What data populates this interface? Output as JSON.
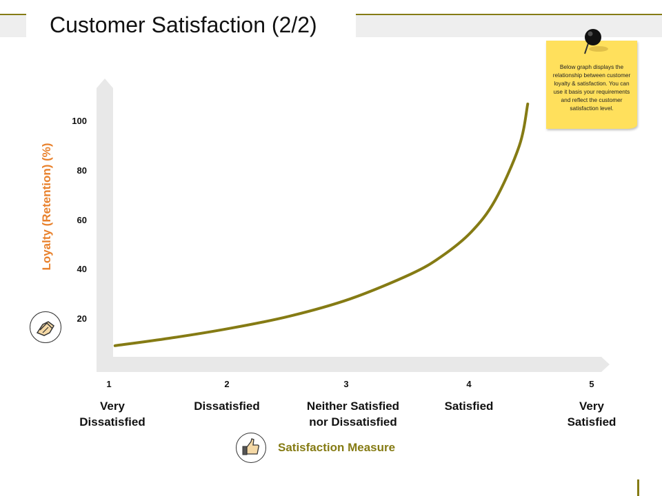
{
  "title": "Customer Satisfaction (2/2)",
  "note": {
    "text": "Below graph displays the relationship between customer loyalty & satisfaction. You can use it basis your requirements and reflect the customer satisfaction level.",
    "color": "#ffe05c"
  },
  "icons": {
    "y_axis": "handshake-icon",
    "x_axis": "thumbs-up-icon",
    "note": "pushpin-icon"
  },
  "colors": {
    "accent": "#857b14",
    "y_axis_title": "#e8812c",
    "curve": "#857b14",
    "axis_band": "#e8e8e8"
  },
  "chart_data": {
    "type": "line",
    "title": "",
    "xlabel": "Satisfaction Measure",
    "ylabel": "Loyalty (Retention) (%)",
    "xlim": [
      1,
      5
    ],
    "ylim": [
      0,
      100
    ],
    "yticks": [
      "100",
      "80",
      "60",
      "40",
      "20"
    ],
    "x_categories": [
      {
        "num": "1",
        "label": [
          "Very",
          "Dissatisfied"
        ]
      },
      {
        "num": "2",
        "label": [
          "Dissatisfied"
        ]
      },
      {
        "num": "3",
        "label": [
          "Neither Satisfied",
          "nor Dissatisfied"
        ]
      },
      {
        "num": "4",
        "label": [
          "Satisfied"
        ]
      },
      {
        "num": "5",
        "label": [
          "Very",
          "Satisfied"
        ]
      }
    ],
    "series": [
      {
        "x": [
          1.05,
          1.5,
          2.0,
          2.5,
          3.0,
          3.5,
          3.75,
          4.0,
          4.2,
          4.4,
          4.47
        ],
        "y": [
          9,
          12,
          16,
          21,
          28,
          38,
          45,
          55,
          68,
          90,
          107
        ]
      }
    ],
    "grid": false,
    "legend": "none"
  }
}
